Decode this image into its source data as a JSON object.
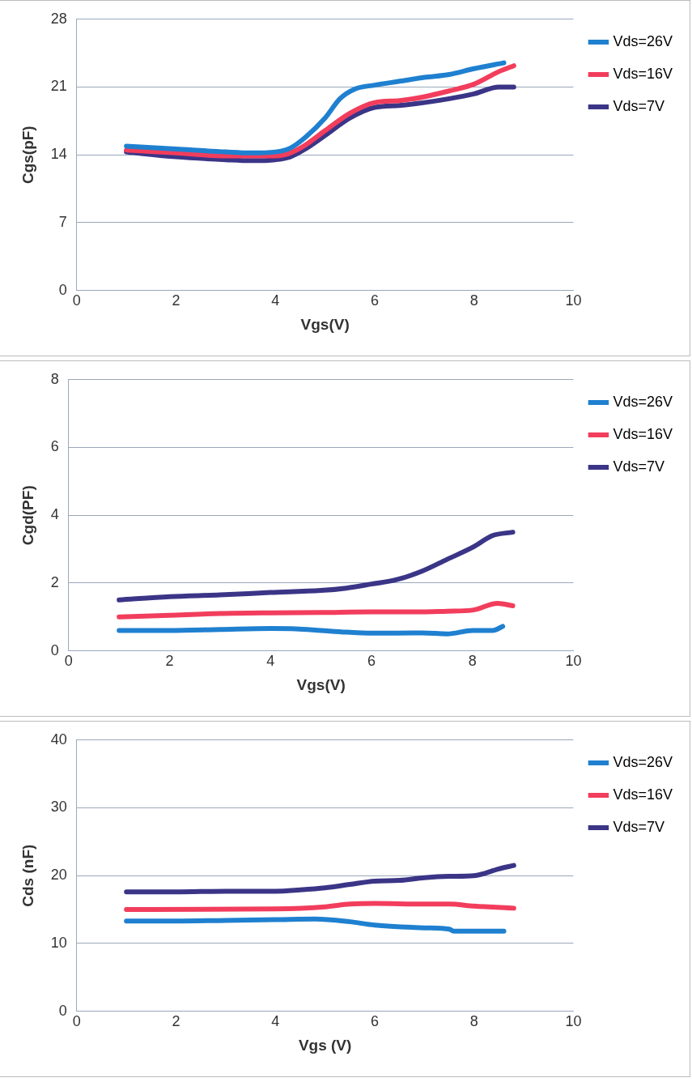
{
  "chart_data": [
    {
      "type": "line",
      "xlabel": "Vgs(V)",
      "ylabel": "Cgs(pF)",
      "xlim": [
        0,
        10
      ],
      "xticks": [
        0,
        2,
        4,
        6,
        8,
        10
      ],
      "ylim": [
        0,
        28
      ],
      "yticks": [
        0,
        7,
        14,
        21,
        28
      ],
      "grid": "y",
      "legend": "top right",
      "marker": "none",
      "series": [
        {
          "name": "Vds=26V",
          "color": "#1f80d0",
          "x": [
            1,
            2,
            3,
            3.5,
            4,
            4.3,
            4.6,
            5,
            5.3,
            5.6,
            6,
            6.5,
            7,
            7.5,
            8,
            8.6
          ],
          "values": [
            14.9,
            14.6,
            14.3,
            14.2,
            14.3,
            14.7,
            15.8,
            17.8,
            19.8,
            20.8,
            21.2,
            21.6,
            22,
            22.3,
            22.9,
            23.5
          ]
        },
        {
          "name": "Vds=16V",
          "color": "#f23d5c",
          "x": [
            1,
            2,
            3,
            4,
            4.3,
            4.6,
            5,
            5.5,
            6,
            6.5,
            7,
            7.5,
            8,
            8.5,
            8.8
          ],
          "values": [
            14.5,
            14.2,
            13.9,
            13.9,
            14.2,
            15,
            16.5,
            18.3,
            19.4,
            19.6,
            20,
            20.6,
            21.3,
            22.6,
            23.2
          ]
        },
        {
          "name": "Vds=7V",
          "color": "#3b3587",
          "x": [
            1,
            2,
            3,
            3.5,
            4,
            4.3,
            4.6,
            5,
            5.5,
            6,
            6.5,
            7,
            7.5,
            8,
            8.5,
            8.8
          ],
          "values": [
            14.3,
            13.8,
            13.5,
            13.4,
            13.5,
            13.8,
            14.6,
            16,
            17.8,
            18.9,
            19.1,
            19.4,
            19.8,
            20.3,
            21,
            21
          ]
        }
      ]
    },
    {
      "type": "line",
      "xlabel": "Vgs(V)",
      "ylabel": "Cgd(PF)",
      "xlim": [
        0,
        10
      ],
      "xticks": [
        0,
        2,
        4,
        6,
        8,
        10
      ],
      "ylim": [
        0,
        8
      ],
      "yticks": [
        0,
        2,
        4,
        6,
        8
      ],
      "grid": "y",
      "legend": "top right",
      "marker": "none",
      "series": [
        {
          "name": "Vds=26V",
          "color": "#1f80d0",
          "x": [
            1,
            2,
            3,
            4,
            4.5,
            5,
            5.5,
            6,
            7,
            7.5,
            8,
            8.4,
            8.6
          ],
          "values": [
            0.6,
            0.6,
            0.63,
            0.66,
            0.65,
            0.6,
            0.55,
            0.52,
            0.53,
            0.5,
            0.6,
            0.6,
            0.72
          ]
        },
        {
          "name": "Vds=16V",
          "color": "#f23d5c",
          "x": [
            1,
            2,
            3,
            4,
            5,
            6,
            7,
            7.5,
            8,
            8.5,
            8.8
          ],
          "values": [
            1,
            1.05,
            1.1,
            1.12,
            1.13,
            1.15,
            1.15,
            1.17,
            1.2,
            1.4,
            1.33
          ]
        },
        {
          "name": "Vds=7V",
          "color": "#3b3587",
          "x": [
            1,
            2,
            3,
            4,
            5,
            5.5,
            6,
            6.5,
            7,
            7.5,
            8,
            8.4,
            8.8
          ],
          "values": [
            1.5,
            1.6,
            1.65,
            1.72,
            1.78,
            1.85,
            1.97,
            2.1,
            2.35,
            2.7,
            3.05,
            3.4,
            3.5
          ]
        }
      ]
    },
    {
      "type": "line",
      "xlabel": "Vgs (V)",
      "ylabel": "Cds (nF)",
      "xlim": [
        0,
        10
      ],
      "xticks": [
        0,
        2,
        4,
        6,
        8,
        10
      ],
      "ylim": [
        0,
        40
      ],
      "yticks": [
        0,
        10,
        20,
        30,
        40
      ],
      "grid": "y",
      "legend": "top right",
      "marker": "none",
      "series": [
        {
          "name": "Vds=26V",
          "color": "#1f80d0",
          "x": [
            1,
            2,
            3,
            4,
            4.8,
            5.5,
            6,
            7,
            7.5,
            7.6,
            8.6
          ],
          "values": [
            13.3,
            13.3,
            13.4,
            13.5,
            13.6,
            13.2,
            12.7,
            12.3,
            12.1,
            11.8,
            11.8
          ]
        },
        {
          "name": "Vds=16V",
          "color": "#f23d5c",
          "x": [
            1,
            4,
            5,
            5.5,
            6,
            7,
            7.5,
            8,
            8.8
          ],
          "values": [
            15,
            15.1,
            15.4,
            15.8,
            15.9,
            15.8,
            15.8,
            15.5,
            15.2
          ]
        },
        {
          "name": "Vds=7V",
          "color": "#3b3587",
          "x": [
            1,
            2,
            3,
            4,
            4.5,
            5,
            5.5,
            6,
            6.5,
            7,
            7.5,
            8,
            8.5,
            8.8
          ],
          "values": [
            17.6,
            17.6,
            17.7,
            17.7,
            17.9,
            18.2,
            18.7,
            19.2,
            19.3,
            19.7,
            19.9,
            20,
            21,
            21.5
          ]
        }
      ]
    }
  ]
}
